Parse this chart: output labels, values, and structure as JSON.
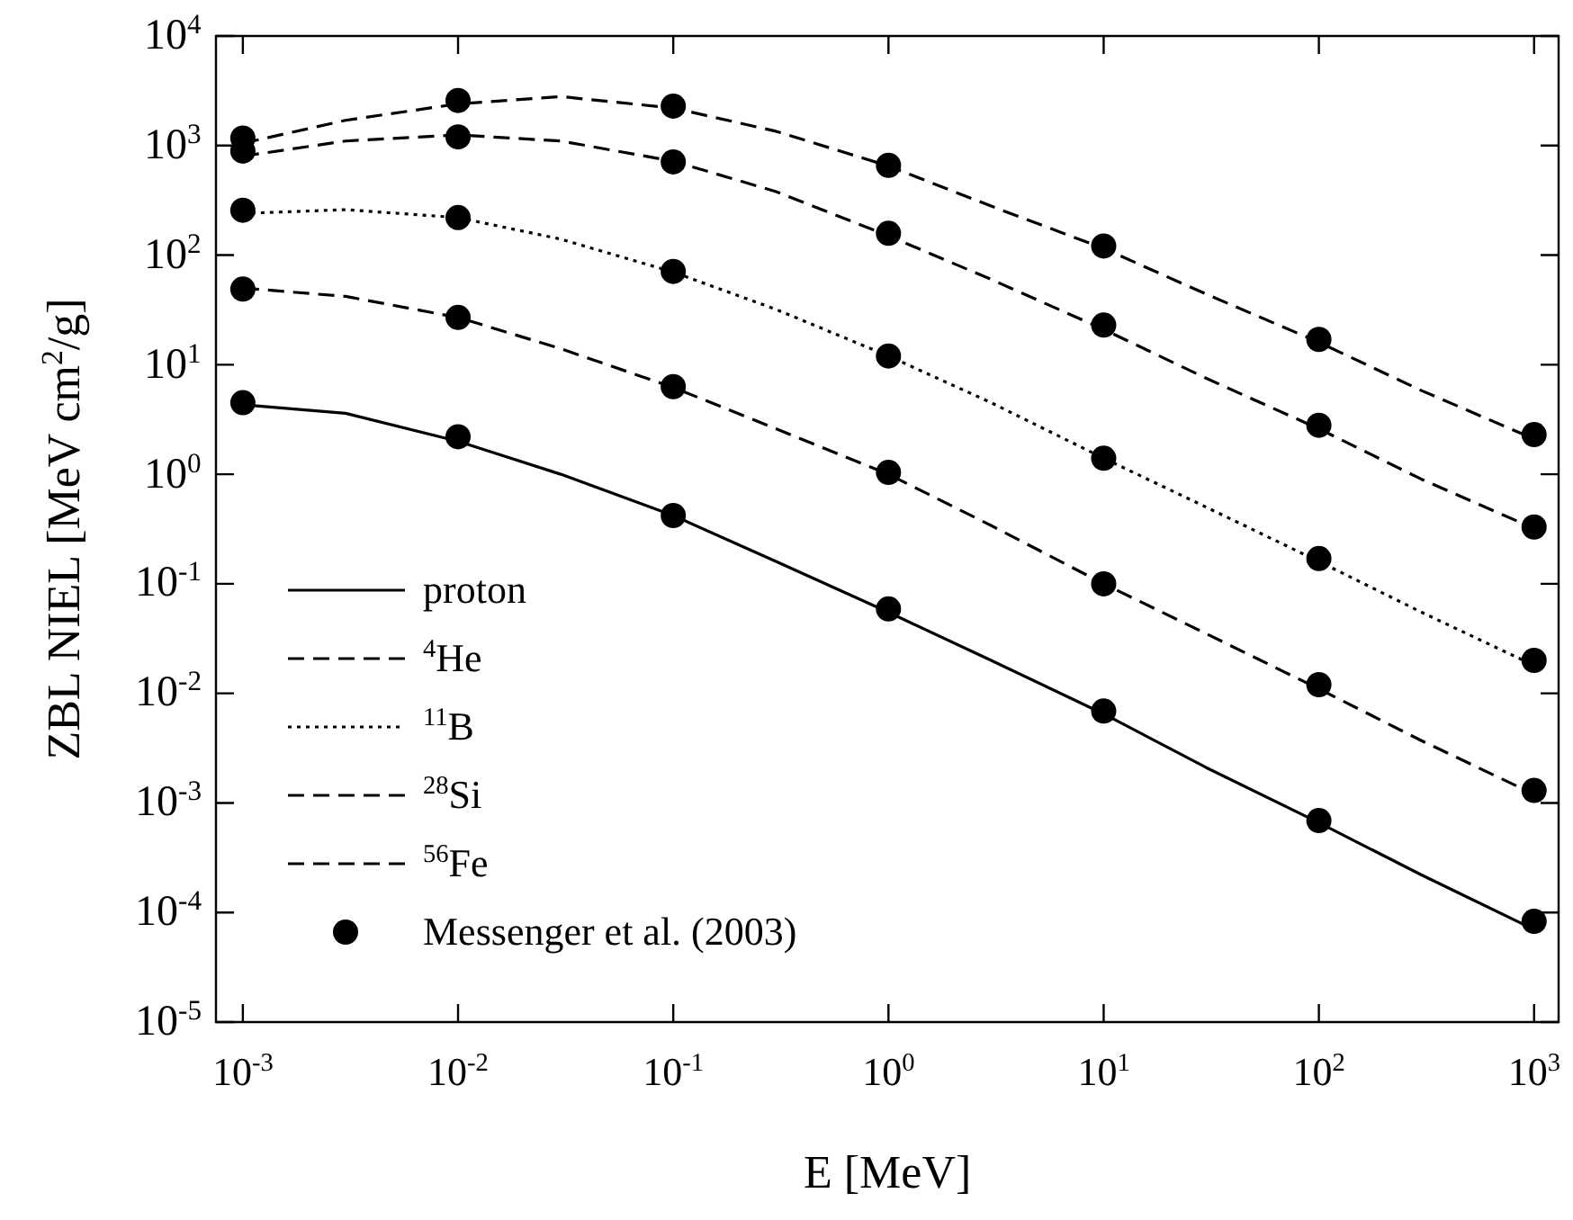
{
  "chart_data": {
    "type": "line",
    "xlabel": "E [MeV]",
    "ylabel": "ZBL NIEL [MeV cm$^{2}$/g]",
    "log": "xy",
    "grid": false,
    "legend": "bottom left",
    "line_style": "dashed",
    "xlim": [
      0.00075,
      1300
    ],
    "ylim": [
      1e-05,
      10000
    ],
    "xticks": [
      {
        "value": 0.001,
        "label": "10$^{-3}$"
      },
      {
        "value": 0.01,
        "label": "10$^{-2}$"
      },
      {
        "value": 0.1,
        "label": "10$^{-1}$"
      },
      {
        "value": 1,
        "label": "10$^{0}$"
      },
      {
        "value": 10,
        "label": "10$^{1}$"
      },
      {
        "value": 100,
        "label": "10$^{2}$"
      },
      {
        "value": 1000,
        "label": "10$^{3}$"
      }
    ],
    "yticks": [
      {
        "value": 1e-05,
        "label": "10$^{-5}$"
      },
      {
        "value": 0.0001,
        "label": "10$^{-4}$"
      },
      {
        "value": 0.001,
        "label": "10$^{-3}$"
      },
      {
        "value": 0.01,
        "label": "10$^{-2}$"
      },
      {
        "value": 0.1,
        "label": "10$^{-1}$"
      },
      {
        "value": 1,
        "label": "10$^{0}$"
      },
      {
        "value": 10,
        "label": "10$^{1}$"
      },
      {
        "value": 100,
        "label": "10$^{2}$"
      },
      {
        "value": 1000,
        "label": "10$^{3}$"
      },
      {
        "value": 10000,
        "label": "10$^{4}$"
      }
    ],
    "series": [
      {
        "name": "proton",
        "color": "#000000",
        "line_style": "solid",
        "marker": "none",
        "x": [
          0.001,
          0.003,
          0.01,
          0.03,
          0.1,
          0.3,
          1,
          3,
          10,
          30,
          100,
          300,
          1000
        ],
        "values": [
          4.3,
          3.6,
          2.0,
          1.0,
          0.42,
          0.16,
          0.055,
          0.02,
          0.0065,
          0.0021,
          0.00066,
          0.00022,
          7e-05
        ]
      },
      {
        "name": "$^{4}$He",
        "color": "#000000",
        "marker": "none",
        "x": [
          0.001,
          0.003,
          0.01,
          0.03,
          0.1,
          0.3,
          1,
          3,
          10,
          30,
          100,
          300,
          1000
        ],
        "values": [
          50,
          42,
          27,
          14,
          6.2,
          2.6,
          1.0,
          0.34,
          0.1,
          0.035,
          0.011,
          0.0037,
          0.0012
        ]
      },
      {
        "name": "$^{11}$B",
        "color": "#000000",
        "line_style": "dotted",
        "marker": "none",
        "x": [
          0.001,
          0.003,
          0.01,
          0.03,
          0.1,
          0.3,
          1,
          3,
          10,
          30,
          100,
          300,
          1000
        ],
        "values": [
          240,
          260,
          220,
          140,
          70,
          32,
          12,
          4.5,
          1.4,
          0.5,
          0.16,
          0.055,
          0.018
        ]
      },
      {
        "name": "$^{28}$Si",
        "color": "#000000",
        "marker": "none",
        "x": [
          0.001,
          0.003,
          0.01,
          0.03,
          0.1,
          0.3,
          1,
          3,
          10,
          30,
          100,
          300,
          1000
        ],
        "values": [
          800,
          1100,
          1250,
          1100,
          720,
          380,
          150,
          60,
          21,
          7.5,
          2.6,
          0.9,
          0.32
        ]
      },
      {
        "name": "$^{56}$Fe",
        "color": "#000000",
        "marker": "none",
        "x": [
          0.001,
          0.003,
          0.01,
          0.03,
          0.1,
          0.3,
          1,
          3,
          10,
          30,
          100,
          300,
          1000
        ],
        "values": [
          1050,
          1700,
          2400,
          2800,
          2200,
          1350,
          650,
          280,
          115,
          44,
          16,
          5.8,
          2.1
        ]
      },
      {
        "name": "Messenger et al. (2003)",
        "type": "scatter",
        "color": "#000000",
        "marker": "circle",
        "x": [
          0.001,
          0.01,
          0.1,
          1,
          10,
          100,
          1000,
          0.001,
          0.01,
          0.1,
          1,
          10,
          100,
          1000,
          0.001,
          0.01,
          0.1,
          1,
          10,
          100,
          1000,
          0.001,
          0.01,
          0.1,
          1,
          10,
          100,
          1000,
          0.001,
          0.01,
          0.1,
          1,
          10,
          100,
          1000
        ],
        "values": [
          4.5,
          2.2,
          0.42,
          0.059,
          0.0069,
          0.00069,
          8.3e-05,
          49,
          27,
          6.3,
          1.04,
          0.1,
          0.012,
          0.0013,
          257,
          220,
          71,
          12,
          1.4,
          0.17,
          0.02,
          890,
          1200,
          710,
          158,
          23,
          2.8,
          0.33,
          1170,
          2580,
          2290,
          660,
          121,
          17,
          2.3
        ]
      }
    ]
  }
}
